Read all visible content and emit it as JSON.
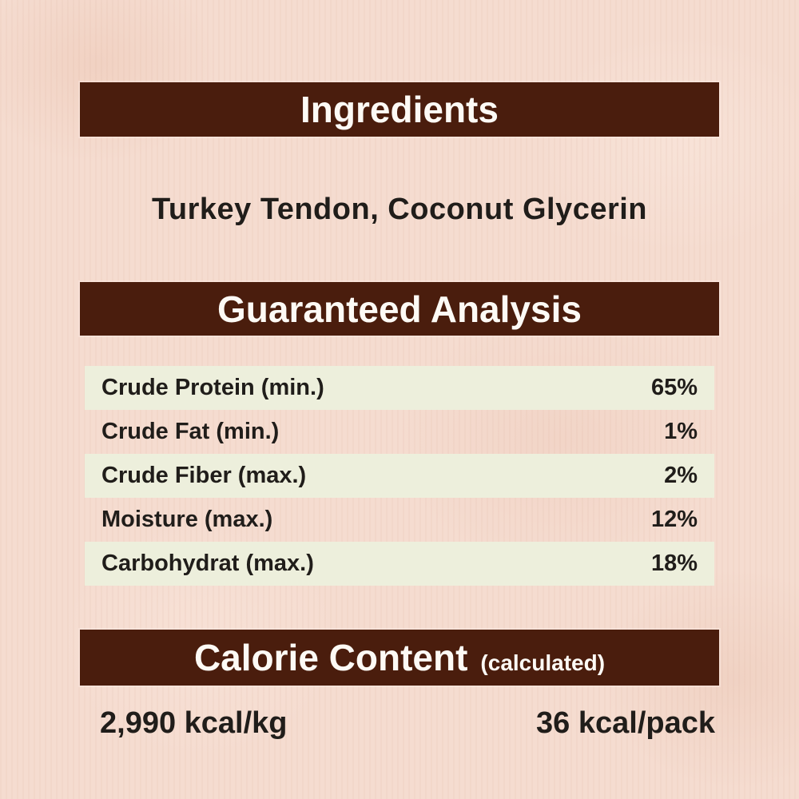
{
  "palette": {
    "background": "#f5dcd0",
    "header_bar": "#4a1d0d",
    "header_text": "#fdfaf5",
    "row_stripe_green": "#edefdc",
    "body_text": "#201d1a"
  },
  "ingredients": {
    "header": "Ingredients",
    "list": "Turkey Tendon, Coconut Glycerin"
  },
  "guaranteed_analysis": {
    "header": "Guaranteed Analysis",
    "rows": [
      {
        "label": "Crude Protein (min.)",
        "value": "65%"
      },
      {
        "label": "Crude Fat (min.)",
        "value": "1%"
      },
      {
        "label": "Crude Fiber (max.)",
        "value": "2%"
      },
      {
        "label": "Moisture (max.)",
        "value": "12%"
      },
      {
        "label": "Carbohydrat (max.)",
        "value": "18%"
      }
    ]
  },
  "calorie_content": {
    "header": "Calorie Content",
    "qualifier": "(calculated)",
    "per_kg": "2,990 kcal/kg",
    "per_pack": "36 kcal/pack"
  }
}
